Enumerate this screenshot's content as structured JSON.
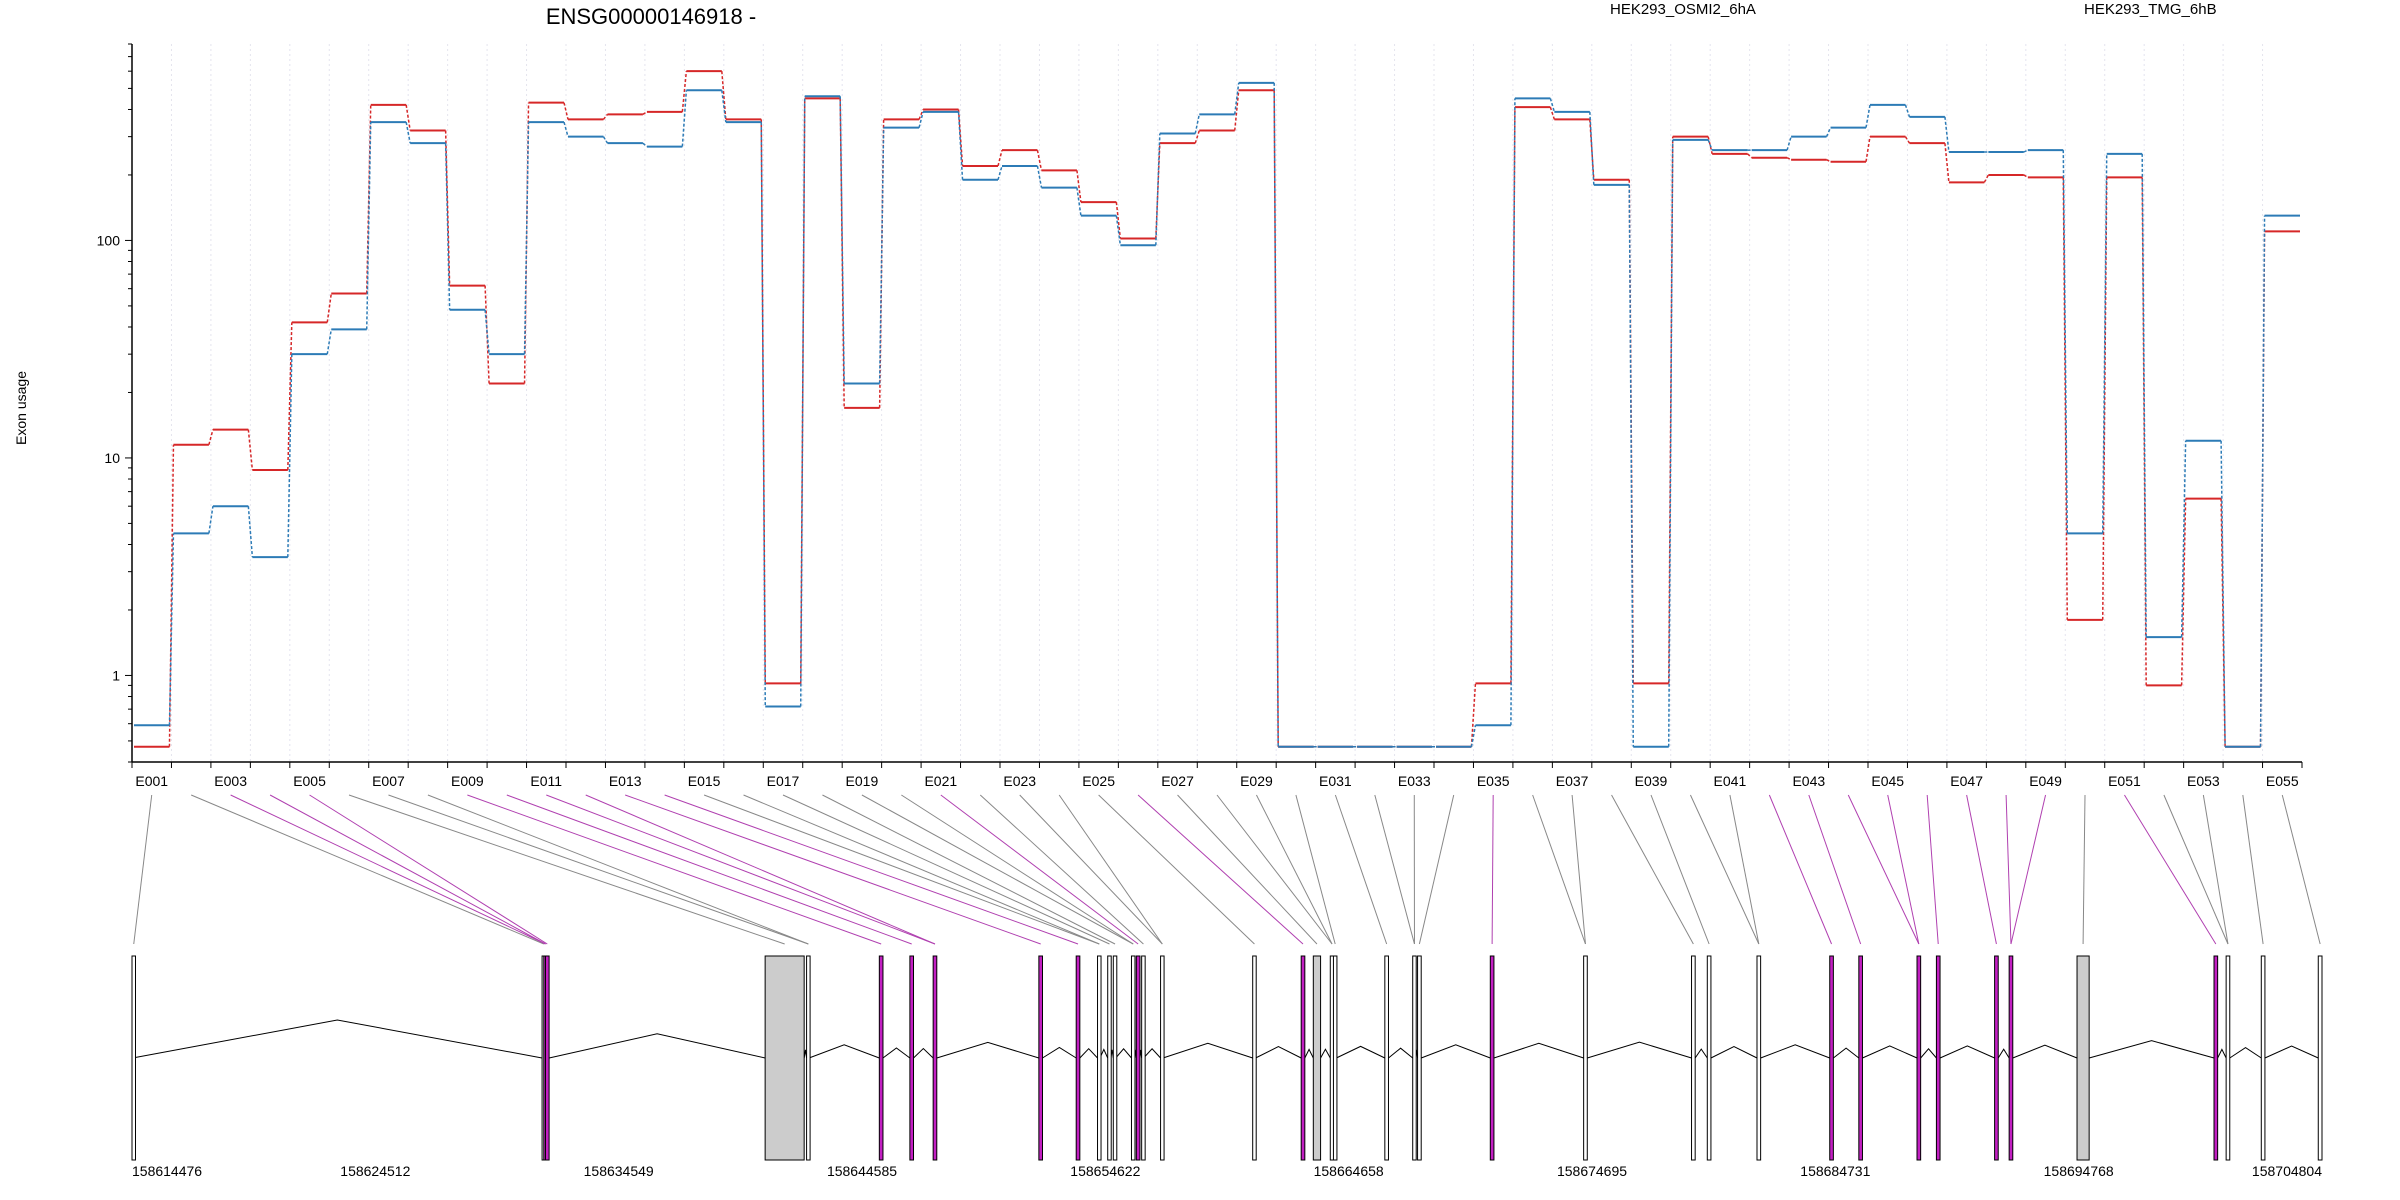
{
  "chart_data": {
    "type": "line",
    "title": "ENSG00000146918 -",
    "xlabel": "",
    "ylabel": "Exon usage",
    "yscale": "log",
    "ylim": [
      0.4,
      800
    ],
    "y_ticks": [
      1,
      10,
      100
    ],
    "y_tick_labels": [
      "1",
      "10",
      "100"
    ],
    "grid": "vertical-dotted",
    "legend_position": "top",
    "exons": [
      "E001",
      "E002",
      "E003",
      "E004",
      "E005",
      "E006",
      "E007",
      "E008",
      "E009",
      "E010",
      "E011",
      "E012",
      "E013",
      "E014",
      "E015",
      "E016",
      "E017",
      "E018",
      "E019",
      "E020",
      "E021",
      "E022",
      "E023",
      "E024",
      "E025",
      "E026",
      "E027",
      "E028",
      "E029",
      "E030",
      "E031",
      "E032",
      "E033",
      "E034",
      "E035",
      "E036",
      "E037",
      "E038",
      "E039",
      "E040",
      "E041",
      "E042",
      "E043",
      "E044",
      "E045",
      "E046",
      "E047",
      "E048",
      "E049",
      "E050",
      "E051",
      "E052",
      "E053",
      "E054",
      "E055"
    ],
    "x_tick_labels": [
      "E001",
      "E003",
      "E005",
      "E007",
      "E009",
      "E011",
      "E013",
      "E015",
      "E017",
      "E019",
      "E021",
      "E023",
      "E025",
      "E027",
      "E029",
      "E031",
      "E033",
      "E035",
      "E037",
      "E039",
      "E041",
      "E043",
      "E045",
      "E047",
      "E049",
      "E051",
      "E053",
      "E055"
    ],
    "series": [
      {
        "name": "HEK293_OSMI2_6hA",
        "color": "#d62728",
        "values": [
          0.47,
          11.5,
          13.5,
          8.8,
          42,
          57,
          420,
          320,
          62,
          22,
          430,
          360,
          380,
          390,
          600,
          360,
          0.92,
          450,
          17,
          360,
          400,
          220,
          260,
          210,
          150,
          102,
          280,
          320,
          490,
          0.47,
          0.47,
          0.47,
          0.47,
          0.47,
          0.92,
          410,
          360,
          190,
          0.92,
          300,
          250,
          240,
          235,
          230,
          300,
          280,
          185,
          200,
          195,
          1.8,
          195,
          0.9,
          6.5,
          0.47,
          110
        ]
      },
      {
        "name": "HEK293_TMG_6hB",
        "color": "#2c7bb6",
        "values": [
          0.59,
          4.5,
          6,
          3.5,
          30,
          39,
          350,
          280,
          48,
          30,
          350,
          300,
          280,
          270,
          490,
          350,
          0.72,
          460,
          22,
          330,
          390,
          190,
          220,
          175,
          130,
          95,
          310,
          380,
          530,
          0.47,
          0.47,
          0.47,
          0.47,
          0.47,
          0.59,
          450,
          390,
          180,
          0.47,
          290,
          260,
          260,
          300,
          330,
          420,
          370,
          255,
          255,
          260,
          4.5,
          250,
          1.5,
          12,
          0.47,
          130
        ]
      }
    ],
    "gene_track": {
      "start": 158614476,
      "end": 158704804,
      "axis_ticks": [
        158614476,
        158624512,
        158634549,
        158644585,
        158654622,
        158664658,
        158674695,
        158684731,
        158694768,
        158704804
      ],
      "exons": [
        [
          158614476,
          158614500,
          "n"
        ],
        [
          158631390,
          158631430,
          "n"
        ],
        [
          158631460,
          158631500,
          "h"
        ],
        [
          158631530,
          158631680,
          "h"
        ],
        [
          158640590,
          158642200,
          "g"
        ],
        [
          158642300,
          158642400,
          "n"
        ],
        [
          158645300,
          158645450,
          "h"
        ],
        [
          158646560,
          158646710,
          "h"
        ],
        [
          158647520,
          158647670,
          "h"
        ],
        [
          158651880,
          158652030,
          "h"
        ],
        [
          158653420,
          158653570,
          "h"
        ],
        [
          158654300,
          158654400,
          "n"
        ],
        [
          158654720,
          158654850,
          "n"
        ],
        [
          158654950,
          158655050,
          "n"
        ],
        [
          158655700,
          158655820,
          "n"
        ],
        [
          158655900,
          158656050,
          "h"
        ],
        [
          158656120,
          158656200,
          "n"
        ],
        [
          158656900,
          158657000,
          "n"
        ],
        [
          158660700,
          158660820,
          "n"
        ],
        [
          158662700,
          158662850,
          "h"
        ],
        [
          158663200,
          158663500,
          "g"
        ],
        [
          158663900,
          158664000,
          "n"
        ],
        [
          158664030,
          158664150,
          "n"
        ],
        [
          158666150,
          158666300,
          "n"
        ],
        [
          158667300,
          158667400,
          "n"
        ],
        [
          158667500,
          158667650,
          "n"
        ],
        [
          158670500,
          158670650,
          "h"
        ],
        [
          158674350,
          158674500,
          "n"
        ],
        [
          158678800,
          158678950,
          "n"
        ],
        [
          158679450,
          158679600,
          "n"
        ],
        [
          158681500,
          158681650,
          "n"
        ],
        [
          158684500,
          158684650,
          "h"
        ],
        [
          158685700,
          158685850,
          "h"
        ],
        [
          158688100,
          158688250,
          "h"
        ],
        [
          158688900,
          158689050,
          "h"
        ],
        [
          158691300,
          158691450,
          "h"
        ],
        [
          158691900,
          158692050,
          "h"
        ],
        [
          158694700,
          158695200,
          "g"
        ],
        [
          158700350,
          158700500,
          "h"
        ],
        [
          158700850,
          158701000,
          "n"
        ],
        [
          158702300,
          158702450,
          "n"
        ],
        [
          158704650,
          158704804,
          "n"
        ]
      ]
    }
  }
}
